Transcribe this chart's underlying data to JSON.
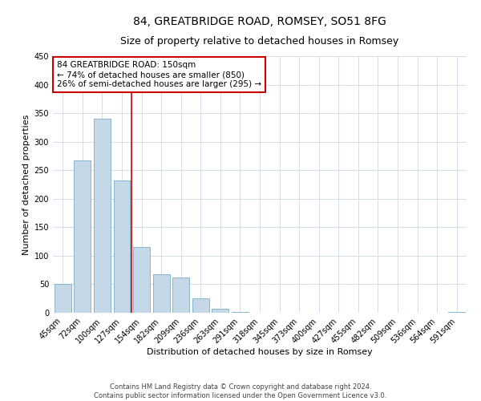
{
  "title": "84, GREATBRIDGE ROAD, ROMSEY, SO51 8FG",
  "subtitle": "Size of property relative to detached houses in Romsey",
  "xlabel": "Distribution of detached houses by size in Romsey",
  "ylabel": "Number of detached properties",
  "footer_line1": "Contains HM Land Registry data © Crown copyright and database right 2024.",
  "footer_line2": "Contains public sector information licensed under the Open Government Licence v3.0.",
  "bar_labels": [
    "45sqm",
    "72sqm",
    "100sqm",
    "127sqm",
    "154sqm",
    "182sqm",
    "209sqm",
    "236sqm",
    "263sqm",
    "291sqm",
    "318sqm",
    "345sqm",
    "373sqm",
    "400sqm",
    "427sqm",
    "455sqm",
    "482sqm",
    "509sqm",
    "536sqm",
    "564sqm",
    "591sqm"
  ],
  "bar_values": [
    50,
    267,
    340,
    232,
    115,
    68,
    62,
    25,
    7,
    1,
    0,
    0,
    0,
    0,
    0,
    0,
    0,
    0,
    0,
    0,
    2
  ],
  "bar_color": "#c5d8e8",
  "bar_edge_color": "#7aaec8",
  "vline_x_index": 4,
  "vline_color": "#cc0000",
  "annotation_text": "84 GREATBRIDGE ROAD: 150sqm\n← 74% of detached houses are smaller (850)\n26% of semi-detached houses are larger (295) →",
  "annotation_box_color": "#ffffff",
  "annotation_box_edgecolor": "#cc0000",
  "ylim": [
    0,
    450
  ],
  "yticks": [
    0,
    50,
    100,
    150,
    200,
    250,
    300,
    350,
    400,
    450
  ],
  "background_color": "#ffffff",
  "grid_color": "#d0d8e8",
  "title_fontsize": 10,
  "subtitle_fontsize": 9,
  "axis_label_fontsize": 8,
  "tick_fontsize": 7,
  "annotation_fontsize": 7.5,
  "footer_fontsize": 6
}
